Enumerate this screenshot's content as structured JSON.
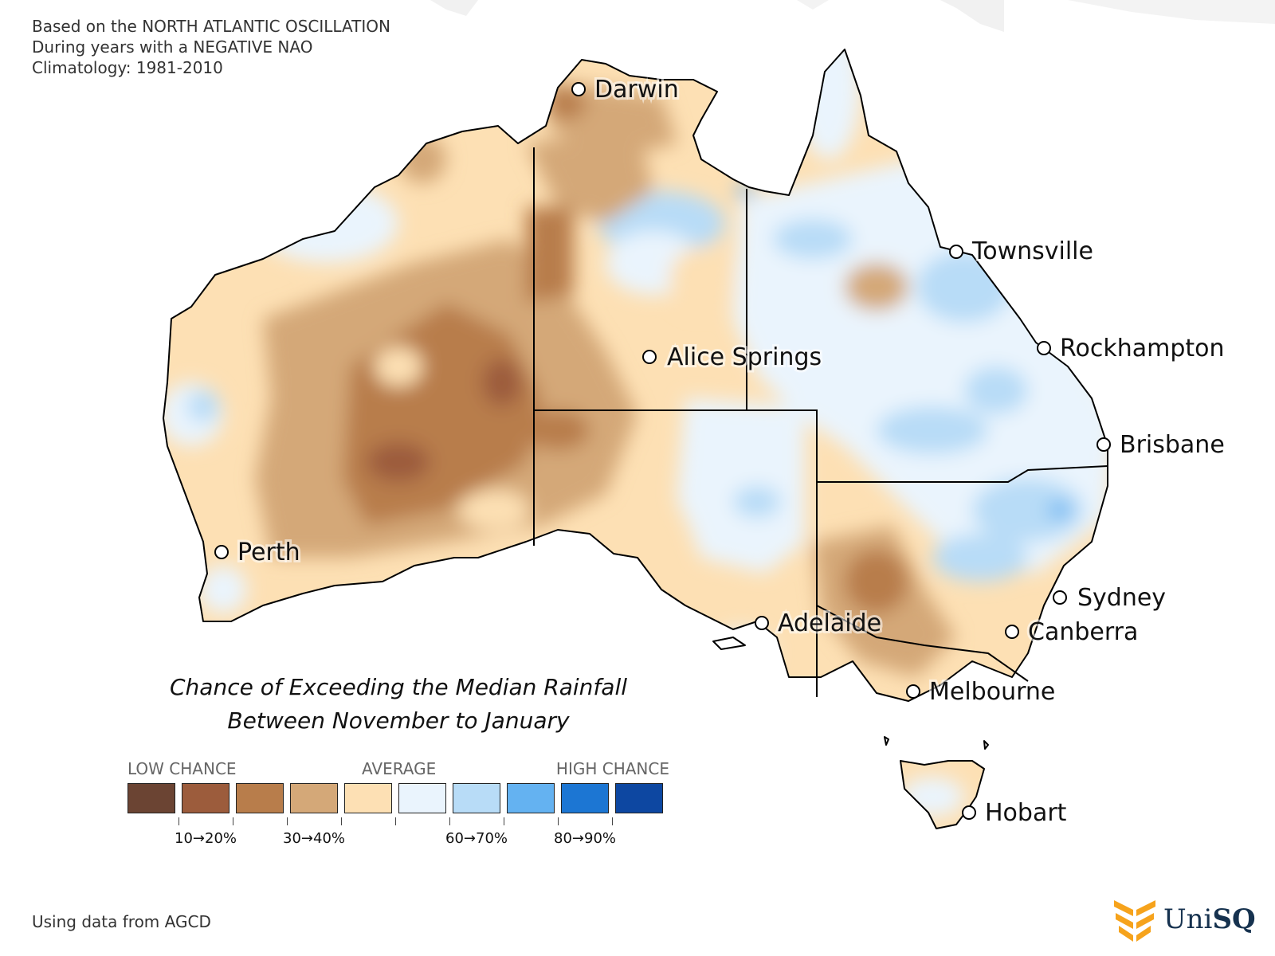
{
  "header": {
    "line1": "Based on the NORTH ATLANTIC OSCILLATION",
    "line2": "During years with a NEGATIVE NAO",
    "line3": "Climatology: 1981-2010"
  },
  "title": {
    "line1": "Chance of Exceeding the Median Rainfall",
    "line2": "Between November to January"
  },
  "cities": [
    {
      "name": "Darwin"
    },
    {
      "name": "Townsville"
    },
    {
      "name": "Alice Springs"
    },
    {
      "name": "Rockhampton"
    },
    {
      "name": "Brisbane"
    },
    {
      "name": "Perth"
    },
    {
      "name": "Sydney"
    },
    {
      "name": "Adelaide"
    },
    {
      "name": "Canberra"
    },
    {
      "name": "Melbourne"
    },
    {
      "name": "Hobart"
    }
  ],
  "legend": {
    "low_label": "LOW CHANCE",
    "average_label": "AVERAGE",
    "high_label": "HIGH CHANCE",
    "colors": [
      "#6b4433",
      "#9c5c3c",
      "#b87d4b",
      "#d4a878",
      "#fde0b4",
      "#eaf4fd",
      "#b8dcf7",
      "#64b2f1",
      "#1c76d3",
      "#0d47a1"
    ],
    "tick_labels": [
      "10→20%",
      "30→40%",
      "60→70%",
      "80→90%"
    ]
  },
  "footer": {
    "source": "Using data from AGCD"
  },
  "logo": {
    "text_a": "Uni",
    "text_b": "SQ"
  },
  "colors": {
    "background": "#ffffff",
    "borders": "#000000"
  }
}
